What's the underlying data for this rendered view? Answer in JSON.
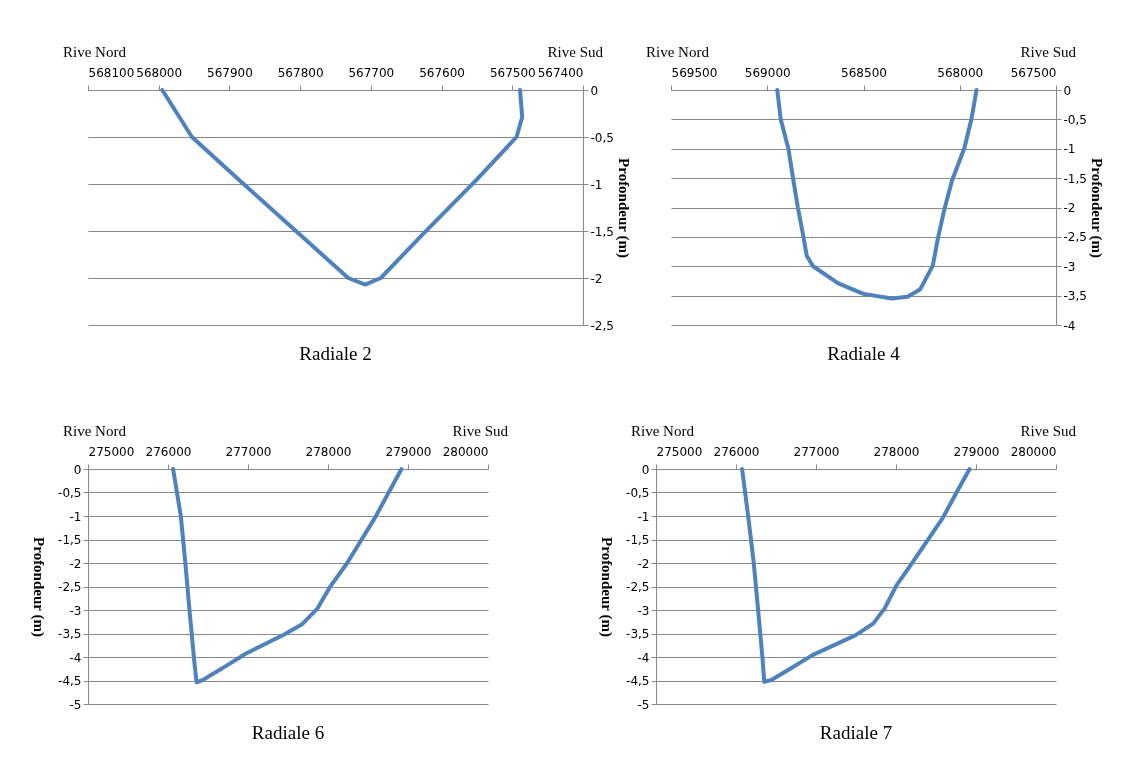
{
  "chart_data": [
    {
      "type": "line",
      "title": "Radiale 2",
      "ylabel": "Profondeur (m)",
      "annotations": [
        "Rive Nord",
        "Rive Sud"
      ],
      "grid": "y",
      "xlim": [
        568100,
        567400
      ],
      "xticks": [
        568100,
        568000,
        567900,
        567800,
        567700,
        567600,
        567500,
        567400
      ],
      "ylim": [
        -2.5,
        0
      ],
      "yticks": [
        0,
        {
          "value": -0.5,
          "label": "-0,5"
        },
        -1,
        {
          "value": -1.5,
          "label": "-1,5"
        },
        -2,
        {
          "value": -2.5,
          "label": "-2,5"
        }
      ],
      "series": [
        {
          "color": "#4f81bd",
          "x": [
            567995,
            567953,
            567880,
            567806,
            567732,
            567708,
            567686,
            567626,
            567550,
            567494,
            567486,
            567489
          ],
          "values": [
            0,
            -0.5,
            -1,
            -1.5,
            -2,
            -2.07,
            -2,
            -1.53,
            -0.95,
            -0.5,
            -0.29,
            0
          ]
        }
      ]
    },
    {
      "type": "line",
      "title": "Radiale 4",
      "ylabel": "Profondeur (m)",
      "annotations": [
        "Rive Nord",
        "Rive Sud"
      ],
      "grid": "y",
      "xlim": [
        569500,
        567500
      ],
      "xticks": [
        569500,
        569000,
        568500,
        568000,
        567500
      ],
      "ylim": [
        -4,
        0
      ],
      "yticks": [
        0,
        {
          "value": -0.5,
          "label": "-0,5"
        },
        -1,
        {
          "value": -1.5,
          "label": "-1,5"
        },
        -2,
        {
          "value": -2.5,
          "label": "-2,5"
        },
        -3,
        {
          "value": -3.5,
          "label": "-3,5"
        },
        -4
      ],
      "series": [
        {
          "color": "#4f81bd",
          "x": [
            568948,
            568930,
            568890,
            568866,
            568841,
            568812,
            568795,
            568762,
            568631,
            568500,
            568353,
            568271,
            568205,
            568140,
            568115,
            568082,
            568041,
            567975,
            567939,
            567913
          ],
          "values": [
            0,
            -0.5,
            -1,
            -1.5,
            -2,
            -2.5,
            -2.82,
            -3,
            -3.29,
            -3.47,
            -3.55,
            -3.52,
            -3.39,
            -2.99,
            -2.55,
            -2.06,
            -1.55,
            -0.98,
            -0.49,
            0
          ]
        }
      ]
    },
    {
      "type": "line",
      "title": "Radiale 6",
      "ylabel": "Profondeur (m)",
      "annotations": [
        "Rive Nord",
        "Rive Sud"
      ],
      "grid": "y",
      "xlim": [
        275000,
        280000
      ],
      "xticks": [
        275000,
        276000,
        277000,
        278000,
        279000,
        280000
      ],
      "ylim": [
        -5,
        0
      ],
      "yticks": [
        0,
        {
          "value": -0.5,
          "label": "-0,5"
        },
        -1,
        {
          "value": -1.5,
          "label": "-1,5"
        },
        -2,
        {
          "value": -2.5,
          "label": "-2,5"
        },
        -3,
        {
          "value": -3.5,
          "label": "-3,5"
        },
        -4,
        {
          "value": -4.5,
          "label": "-4,5"
        },
        -5
      ],
      "series": [
        {
          "color": "#4f81bd",
          "x": [
            276064,
            276160,
            276217,
            276270,
            276327,
            276357,
            276445,
            276707,
            276970,
            277452,
            277671,
            277868,
            278021,
            278240,
            278590,
            278765,
            278919
          ],
          "values": [
            0,
            -1,
            -2,
            -3.03,
            -4.07,
            -4.54,
            -4.48,
            -4.21,
            -3.93,
            -3.52,
            -3.31,
            -2.97,
            -2.52,
            -2,
            -1.03,
            -0.48,
            0
          ]
        }
      ]
    },
    {
      "type": "line",
      "title": "Radiale 7",
      "ylabel": "Profondeur (m)",
      "annotations": [
        "Rive Nord",
        "Rive Sud"
      ],
      "grid": "y",
      "xlim": [
        275000,
        280000
      ],
      "xticks": [
        275000,
        276000,
        277000,
        278000,
        279000,
        280000
      ],
      "ylim": [
        -5,
        0
      ],
      "yticks": [
        0,
        {
          "value": -0.5,
          "label": "-0,5"
        },
        -1,
        {
          "value": -1.5,
          "label": "-1,5"
        },
        -2,
        {
          "value": -2.5,
          "label": "-2,5"
        },
        -3,
        {
          "value": -3.5,
          "label": "-3,5"
        },
        -4,
        {
          "value": -4.5,
          "label": "-4,5"
        },
        -5
      ],
      "series": [
        {
          "color": "#4f81bd",
          "x": [
            276076,
            276152,
            276219,
            276277,
            276330,
            276353,
            276442,
            276688,
            276955,
            277491,
            277714,
            277857,
            278004,
            278205,
            278585,
            278763,
            278920
          ],
          "values": [
            0,
            -1,
            -1.95,
            -3.01,
            -4,
            -4.53,
            -4.49,
            -4.24,
            -3.96,
            -3.54,
            -3.29,
            -2.97,
            -2.48,
            -1.99,
            -1.04,
            -0.48,
            0
          ]
        }
      ]
    }
  ]
}
